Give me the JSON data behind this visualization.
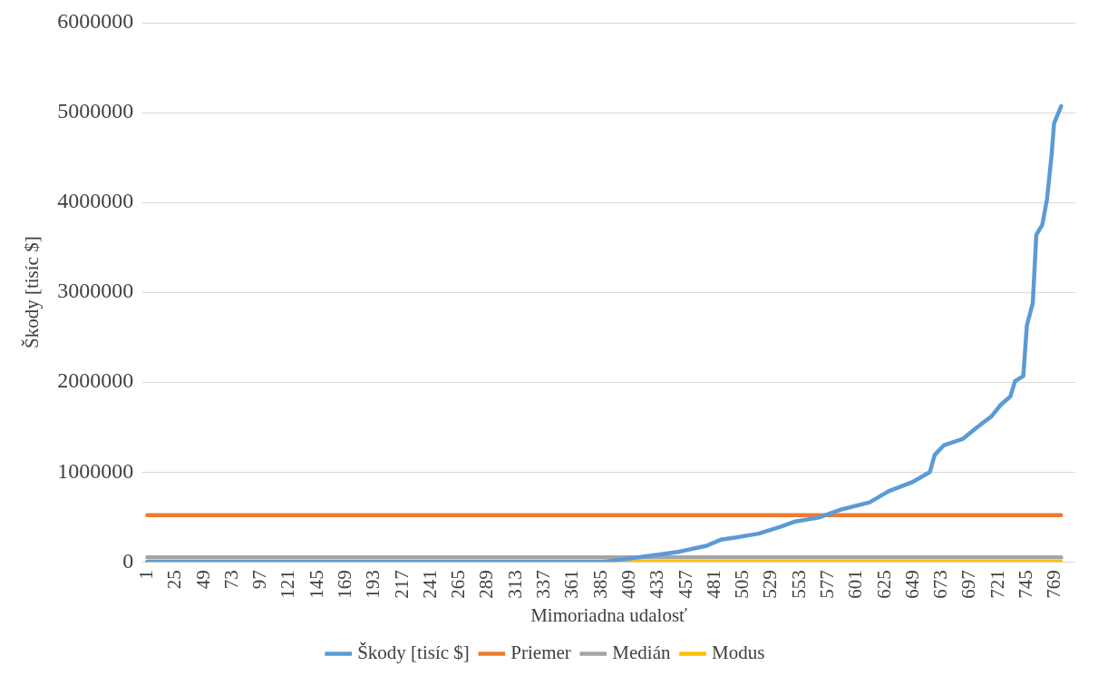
{
  "chart_data": {
    "type": "line",
    "xlabel": "Mimoriadna udalosť",
    "ylabel": "Škody [tisíc $]",
    "xlim": [
      -3,
      786
    ],
    "xticks": [
      1,
      25,
      49,
      73,
      97,
      121,
      145,
      169,
      193,
      217,
      241,
      265,
      289,
      313,
      337,
      361,
      385,
      409,
      433,
      457,
      481,
      505,
      529,
      553,
      577,
      601,
      625,
      649,
      673,
      697,
      721,
      745,
      769
    ],
    "ylim": [
      0,
      6000000
    ],
    "yticks": [
      0,
      1000000,
      2000000,
      3000000,
      4000000,
      5000000,
      6000000
    ],
    "grid": "y",
    "legend": "bottom",
    "marker": "none",
    "line_style": "solid",
    "series": [
      {
        "name": "Škody [tisíc $]",
        "color": "#5b9bd5",
        "x": [
          1,
          387,
          419,
          450,
          474,
          486,
          498,
          518,
          537,
          549,
          569,
          588,
          612,
          628,
          648,
          663,
          667,
          675,
          691,
          703,
          715,
          723,
          731,
          735,
          742,
          745,
          750,
          753,
          758,
          762,
          766,
          768,
          774
        ],
        "values": [
          0,
          0,
          56000,
          112000,
          180000,
          247000,
          270000,
          315000,
          393000,
          450000,
          494000,
          584000,
          663000,
          787000,
          888000,
          1000000,
          1190000,
          1300000,
          1370000,
          1500000,
          1620000,
          1750000,
          1840000,
          2010000,
          2070000,
          2630000,
          2880000,
          3640000,
          3750000,
          4030000,
          4540000,
          4880000,
          5070000
        ]
      },
      {
        "name": "Priemer",
        "color": "#ed7d31",
        "x": [
          1,
          774
        ],
        "values": [
          520000,
          520000
        ]
      },
      {
        "name": "Medián",
        "color": "#a5a5a5",
        "x": [
          1,
          774
        ],
        "values": [
          50000,
          50000
        ]
      },
      {
        "name": "Modus",
        "color": "#ffc000",
        "x": [
          1,
          774
        ],
        "values": [
          0,
          0
        ]
      }
    ]
  }
}
